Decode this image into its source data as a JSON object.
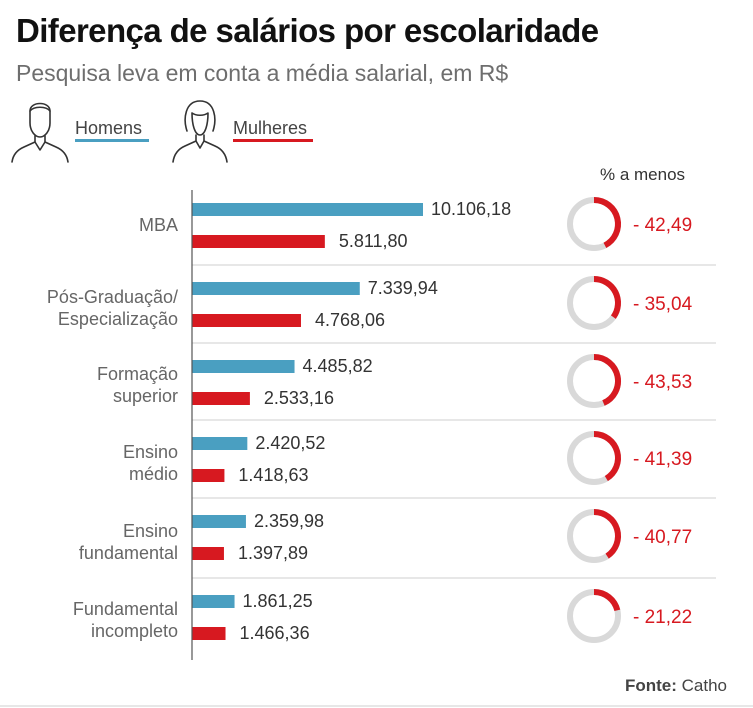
{
  "title": "Diferença de salários por escolaridade",
  "subtitle": "Pesquisa leva em conta a média salarial, em R$",
  "legend": {
    "men_label": "Homens",
    "women_label": "Mulheres",
    "men_icon": "man-silhouette-icon",
    "women_icon": "woman-silhouette-icon"
  },
  "percent_header": "% a menos",
  "source": {
    "label": "Fonte:",
    "name": "Catho"
  },
  "colors": {
    "men": "#4a9fc1",
    "women": "#d71920",
    "ring_track": "#d9d9d9",
    "percent_text": "#d71920",
    "divider": "#cfcfcf"
  },
  "chart_data": {
    "type": "bar",
    "orientation": "horizontal",
    "categories": [
      [
        "MBA"
      ],
      [
        "Pós-Graduação/",
        "Especialização"
      ],
      [
        "Formação",
        "superior"
      ],
      [
        "Ensino",
        "médio"
      ],
      [
        "Ensino",
        "fundamental"
      ],
      [
        "Fundamental",
        "incompleto"
      ]
    ],
    "series": [
      {
        "name": "Homens",
        "values": [
          10106.18,
          7339.94,
          4485.82,
          2420.52,
          2359.98,
          1861.25
        ],
        "labels": [
          "10.106,18",
          "7.339,94",
          "4.485,82",
          "2.420,52",
          "2.359,98",
          "1.861,25"
        ]
      },
      {
        "name": "Mulheres",
        "values": [
          5811.8,
          4768.06,
          2533.16,
          1418.63,
          1397.89,
          1466.36
        ],
        "labels": [
          "5.811,80",
          "4.768,06",
          "2.533,16",
          "1.418,63",
          "1.397,89",
          "1.466,36"
        ]
      }
    ],
    "percent_less": {
      "values": [
        42.49,
        35.04,
        43.53,
        41.39,
        40.77,
        21.22
      ],
      "labels": [
        "- 42,49",
        "- 35,04",
        "- 43,53",
        "- 41,39",
        "- 40,77",
        "- 21,22"
      ]
    },
    "xlim": [
      0,
      10106.18
    ],
    "grid": false
  }
}
